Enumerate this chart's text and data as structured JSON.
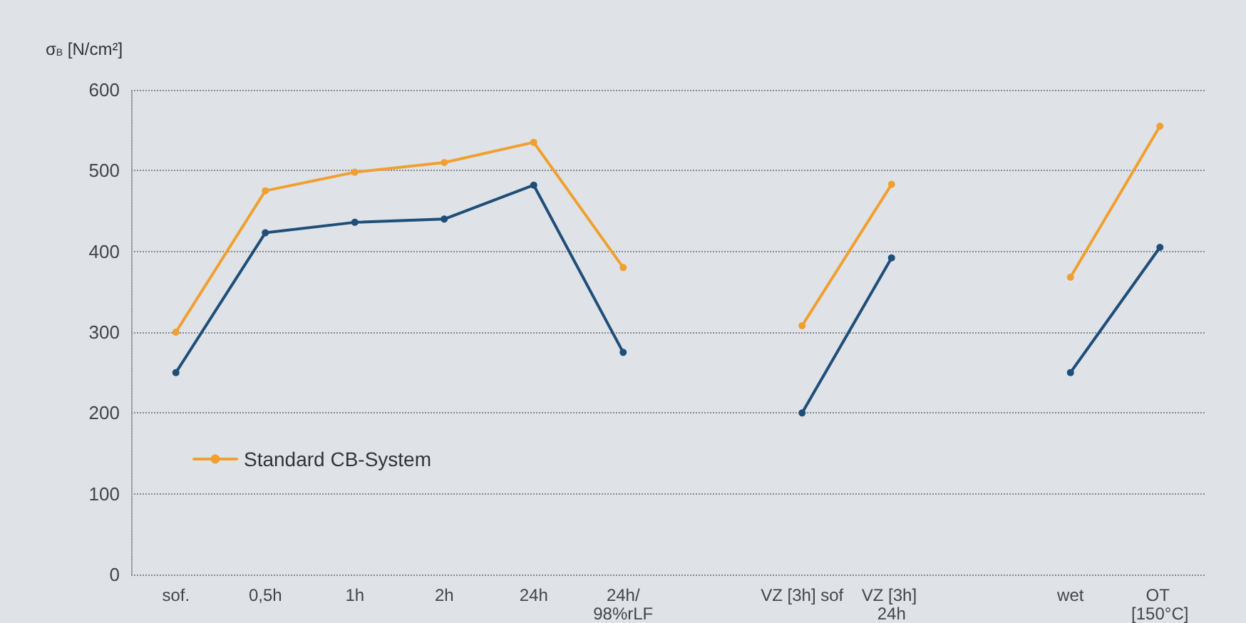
{
  "chart_data": {
    "type": "line",
    "ylabel": "σ$_{B}$ [N/cm²]",
    "categories": [
      "sof.",
      "0,5h",
      "1h",
      "2h",
      "24h",
      "24h/98%rLF",
      null,
      "VZ [3h] sof",
      "VZ [3h] 24h",
      null,
      "wet",
      "OT [150°C]"
    ],
    "series": [
      {
        "name": "Standard CB-System",
        "color": "#f0a030",
        "values": [
          300,
          475,
          498,
          510,
          535,
          380,
          null,
          308,
          483,
          null,
          368,
          555
        ]
      },
      {
        "color": "#1f4e79",
        "values": [
          250,
          423,
          436,
          440,
          482,
          275,
          null,
          200,
          392,
          null,
          250,
          405
        ]
      }
    ],
    "ylim": [
      0,
      600
    ],
    "yticks": [
      0,
      100,
      200,
      300,
      400,
      500,
      600
    ],
    "grid": "y",
    "legend": "bottom left",
    "marker": "circle",
    "line_style": "solid"
  }
}
